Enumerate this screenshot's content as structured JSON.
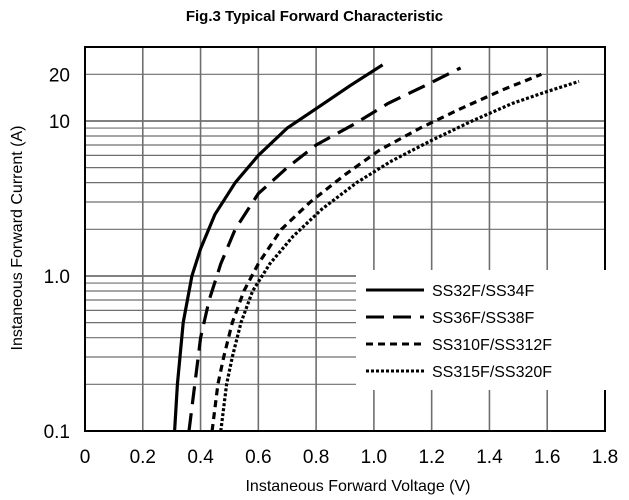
{
  "chart_data": {
    "type": "line",
    "title": "Fig.3  Typical Forward Characteristic",
    "xlabel": "Instaneous Forward Voltage (V)",
    "ylabel": "Instaneous Forward Current  (A)",
    "x_scale": "linear",
    "y_scale": "log",
    "xlim": [
      0,
      1.8
    ],
    "ylim": [
      0.1,
      30
    ],
    "x_ticks": [
      "0",
      "0.2",
      "0.4",
      "0.6",
      "0.8",
      "1.0",
      "1.2",
      "1.4",
      "1.6",
      "1.8"
    ],
    "y_ticks": [
      {
        "value": 0.1,
        "label": "0.1"
      },
      {
        "value": 1.0,
        "label": "1.0"
      },
      {
        "value": 10,
        "label": "10"
      },
      {
        "value": 20,
        "label": "20"
      }
    ],
    "grid": true,
    "legend_position": "lower-right",
    "series": [
      {
        "name": "SS32F/SS34F",
        "style": "solid",
        "x": [
          0.31,
          0.32,
          0.34,
          0.37,
          0.4,
          0.45,
          0.52,
          0.6,
          0.7,
          0.8,
          0.92,
          1.03
        ],
        "y": [
          0.1,
          0.2,
          0.5,
          1.0,
          1.5,
          2.5,
          4.0,
          6.0,
          9.0,
          12.0,
          17.0,
          23.0
        ]
      },
      {
        "name": "SS36F/SS38F",
        "style": "dashed",
        "x": [
          0.36,
          0.38,
          0.4,
          0.43,
          0.47,
          0.52,
          0.6,
          0.7,
          0.8,
          0.93,
          1.05,
          1.18,
          1.3
        ],
        "y": [
          0.1,
          0.2,
          0.4,
          0.7,
          1.2,
          2.0,
          3.4,
          5.0,
          7.0,
          9.5,
          13.0,
          17.0,
          22.0
        ]
      },
      {
        "name": "SS310F/SS312F",
        "style": "short-dashed",
        "x": [
          0.44,
          0.46,
          0.48,
          0.51,
          0.55,
          0.6,
          0.68,
          0.78,
          0.9,
          1.02,
          1.16,
          1.3,
          1.45,
          1.58
        ],
        "y": [
          0.1,
          0.2,
          0.3,
          0.5,
          0.8,
          1.2,
          2.0,
          3.0,
          4.5,
          6.5,
          9.0,
          12.0,
          16.0,
          20.0
        ]
      },
      {
        "name": "SS315F/SS320F",
        "style": "dotted",
        "x": [
          0.47,
          0.49,
          0.51,
          0.54,
          0.58,
          0.64,
          0.72,
          0.82,
          0.94,
          1.06,
          1.2,
          1.34,
          1.48,
          1.6,
          1.71
        ],
        "y": [
          0.1,
          0.2,
          0.3,
          0.5,
          0.8,
          1.2,
          1.8,
          2.7,
          4.0,
          5.5,
          7.5,
          10.0,
          13.0,
          15.5,
          18.0
        ]
      }
    ]
  }
}
